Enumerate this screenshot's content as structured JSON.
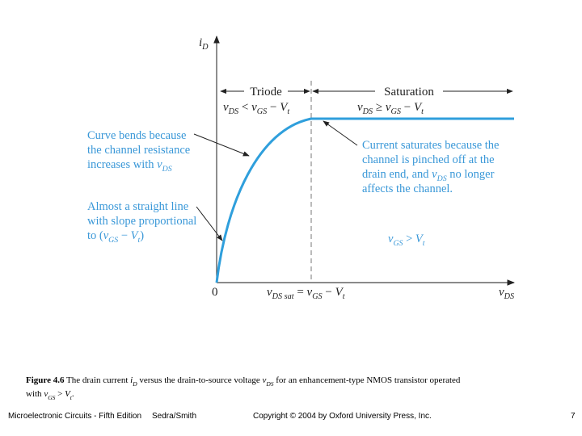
{
  "figure": {
    "y_axis_label": [
      {
        "text": "i",
        "style": "italic"
      },
      {
        "text": "D",
        "style": "sub"
      }
    ],
    "x_axis_label": [
      {
        "text": "v",
        "style": "italic"
      },
      {
        "text": "DS",
        "style": "sub"
      }
    ],
    "origin": "0",
    "x_mark_label": [
      {
        "text": "v",
        "style": "italic"
      },
      {
        "text": "DS sat",
        "style": "sub"
      },
      " = ",
      {
        "text": "v",
        "style": "italic"
      },
      {
        "text": "GS",
        "style": "sub"
      },
      " − ",
      {
        "text": "V",
        "style": "italic"
      },
      {
        "text": "t",
        "style": "sub"
      }
    ],
    "triode": {
      "label": "Triode",
      "condition": [
        {
          "text": "v",
          "style": "italic"
        },
        {
          "text": "DS",
          "style": "sub"
        },
        " < ",
        {
          "text": "v",
          "style": "italic"
        },
        {
          "text": "GS",
          "style": "sub"
        },
        " − ",
        {
          "text": "V",
          "style": "italic"
        },
        {
          "text": "t",
          "style": "sub"
        }
      ]
    },
    "saturation": {
      "label": "Saturation",
      "condition": [
        {
          "text": "v",
          "style": "italic"
        },
        {
          "text": "DS",
          "style": "sub"
        },
        " ≥ ",
        {
          "text": "v",
          "style": "italic"
        },
        {
          "text": "GS",
          "style": "sub"
        },
        " − ",
        {
          "text": "V",
          "style": "italic"
        },
        {
          "text": "t",
          "style": "sub"
        }
      ]
    },
    "note_bend": [
      "Curve bends because",
      "the channel resistance",
      [
        "increases with ",
        {
          "text": "v",
          "style": "italic"
        },
        {
          "text": "DS",
          "style": "sub"
        }
      ]
    ],
    "note_straight": [
      "Almost a straight line",
      "with slope proportional",
      [
        "to (",
        {
          "text": "v",
          "style": "italic"
        },
        {
          "text": "GS",
          "style": "sub"
        },
        " − ",
        {
          "text": "V",
          "style": "italic"
        },
        {
          "text": "t",
          "style": "sub"
        },
        ")"
      ]
    ],
    "note_saturates": [
      "Current saturates because the",
      "channel is pinched off at the",
      [
        "drain end, and ",
        {
          "text": "v",
          "style": "italic"
        },
        {
          "text": "DS",
          "style": "sub"
        },
        " no longer"
      ],
      "affects the channel."
    ],
    "gate_condition": [
      {
        "text": "v",
        "style": "italic"
      },
      {
        "text": "GS",
        "style": "sub"
      },
      " > ",
      {
        "text": "V",
        "style": "italic"
      },
      {
        "text": "t",
        "style": "sub"
      }
    ]
  },
  "caption": {
    "line1": [
      {
        "text": "Figure 4.6",
        "style": "bold"
      },
      "  The drain current ",
      {
        "text": "i",
        "style": "italic"
      },
      {
        "text": "D",
        "style": "sub"
      },
      " versus the drain-to-source voltage ",
      {
        "text": "v",
        "style": "italic"
      },
      {
        "text": "DS",
        "style": "sub"
      },
      " for an enhancement-type NMOS transistor operated"
    ],
    "line2": [
      "with ",
      {
        "text": "v",
        "style": "italic"
      },
      {
        "text": "GS",
        "style": "sub"
      },
      " > ",
      {
        "text": "V",
        "style": "italic"
      },
      {
        "text": "t",
        "style": "sub"
      },
      "."
    ]
  },
  "footer": {
    "book": "Microelectronic Circuits - Fifth Edition",
    "authors": "Sedra/Smith",
    "copyright": "Copyright © 2004 by Oxford University Press, Inc.",
    "page": "7"
  }
}
